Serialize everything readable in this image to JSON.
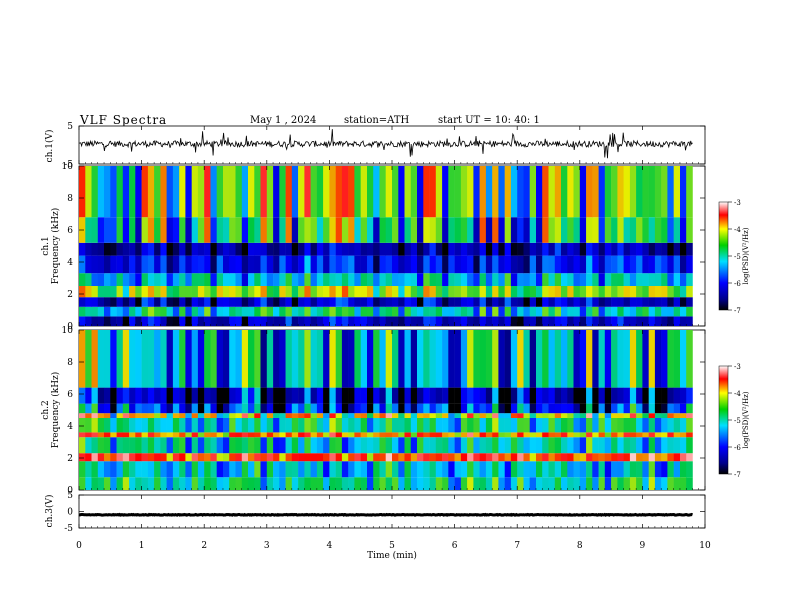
{
  "header": {
    "title": "VLF  Spectra",
    "date": "May 1  , 2024",
    "station": "station=ATH",
    "start_ut": "start  UT  =   10: 40: 1"
  },
  "chart_data": [
    {
      "type": "line",
      "panel": "ch1-waveform",
      "ylabel": "ch.1(V)",
      "ylim": [
        -5,
        5
      ],
      "y_ticks": [
        "5",
        "-5"
      ],
      "xlim": [
        0,
        10
      ],
      "x_end": 9.8,
      "color": "#000000",
      "baseline": 0.3
    },
    {
      "type": "heatmap",
      "panel": "ch1-spectrogram",
      "ylabel": "ch.1\nFrequency  (kHz)",
      "ylim": [
        0,
        10
      ],
      "y_ticks": [
        "0",
        "2",
        "4",
        "6",
        "8",
        "10"
      ],
      "xlim": [
        0,
        10
      ],
      "x_end": 9.8,
      "colorbar": {
        "label": "log(PSD)(V²/Hz)",
        "range": [
          -7,
          -3
        ],
        "ticks": [
          "-3",
          "-4",
          "-5",
          "-6",
          "-7"
        ]
      },
      "bands_khz": [
        {
          "f0": 0.0,
          "f1": 0.6,
          "level": -6.3
        },
        {
          "f0": 0.6,
          "f1": 1.2,
          "level": -5.2
        },
        {
          "f0": 1.2,
          "f1": 1.8,
          "level": -6.3
        },
        {
          "f0": 1.8,
          "f1": 2.5,
          "level": -4.6
        },
        {
          "f0": 2.5,
          "f1": 3.3,
          "level": -5.4
        },
        {
          "f0": 3.3,
          "f1": 4.4,
          "level": -6.0
        },
        {
          "f0": 4.4,
          "f1": 5.2,
          "level": -6.4
        },
        {
          "f0": 5.2,
          "f1": 6.8,
          "level": -5.0
        },
        {
          "f0": 6.8,
          "f1": 10.0,
          "level": -4.7
        }
      ]
    },
    {
      "type": "heatmap",
      "panel": "ch2-spectrogram",
      "ylabel": "ch.2\nFrequency  (kHz)",
      "ylim": [
        0,
        10
      ],
      "y_ticks": [
        "0",
        "2",
        "4",
        "6",
        "8",
        "10"
      ],
      "xlim": [
        0,
        10
      ],
      "x_end": 9.8,
      "colorbar": {
        "label": "log(PSD)(V²/Hz)",
        "range": [
          -7,
          -3
        ],
        "ticks": [
          "-3",
          "-4",
          "-5",
          "-6",
          "-7"
        ]
      },
      "bands_khz": [
        {
          "f0": 0.0,
          "f1": 0.8,
          "level": -5.1
        },
        {
          "f0": 0.8,
          "f1": 1.8,
          "level": -5.3
        },
        {
          "f0": 1.8,
          "f1": 2.3,
          "level": -3.8
        },
        {
          "f0": 2.3,
          "f1": 3.3,
          "level": -5.2
        },
        {
          "f0": 3.3,
          "f1": 3.6,
          "level": -4.0
        },
        {
          "f0": 3.6,
          "f1": 4.5,
          "level": -5.1
        },
        {
          "f0": 4.5,
          "f1": 4.8,
          "level": -4.3
        },
        {
          "f0": 4.8,
          "f1": 5.4,
          "level": -5.8
        },
        {
          "f0": 5.4,
          "f1": 6.4,
          "level": -6.3
        },
        {
          "f0": 6.4,
          "f1": 10.0,
          "level": -5.2
        }
      ]
    },
    {
      "type": "line",
      "panel": "ch3-waveform",
      "ylabel": "ch.3(V)",
      "ylim": [
        -5,
        5
      ],
      "y_ticks": [
        "5",
        "0",
        "-5"
      ],
      "xlim": [
        0,
        10
      ],
      "x_end": 9.8,
      "color": "#000000",
      "baseline": -1.0
    }
  ],
  "x_axis": {
    "label": "Time  (min)",
    "ticks": [
      "0",
      "1",
      "2",
      "3",
      "4",
      "5",
      "6",
      "7",
      "8",
      "9",
      "10"
    ]
  }
}
